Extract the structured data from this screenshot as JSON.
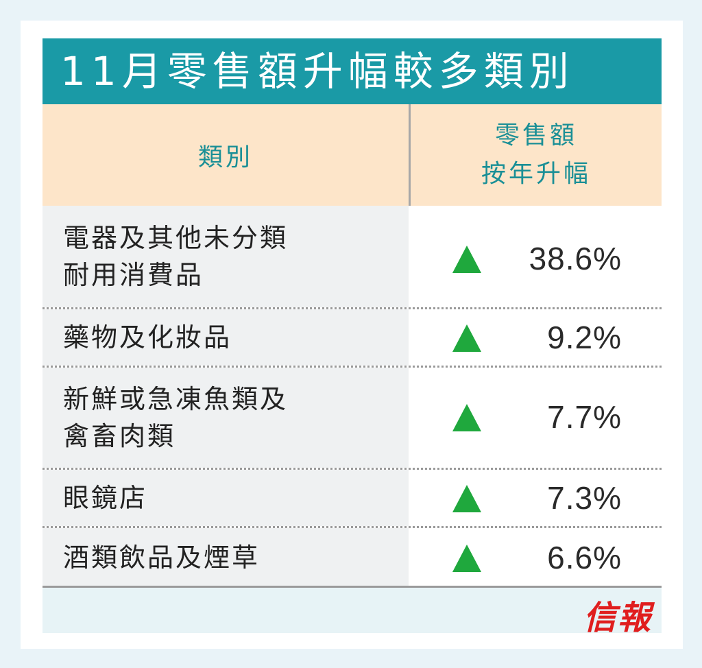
{
  "title": "11月零售額升幅較多類別",
  "table": {
    "headers": {
      "category": "類別",
      "value_line1": "零售額",
      "value_line2": "按年升幅"
    },
    "rows": [
      {
        "category_line1": "電器及其他未分類",
        "category_line2": "耐用消費品",
        "value": "38.6%"
      },
      {
        "category_line1": "藥物及化妝品",
        "category_line2": "",
        "value": "9.2%"
      },
      {
        "category_line1": "新鮮或急凍魚類及",
        "category_line2": "禽畜肉類",
        "value": "7.7%"
      },
      {
        "category_line1": "眼鏡店",
        "category_line2": "",
        "value": "7.3%"
      },
      {
        "category_line1": "酒類飲品及煙草",
        "category_line2": "",
        "value": "6.6%"
      }
    ]
  },
  "chart_data": {
    "type": "table",
    "title": "11月零售額升幅較多類別",
    "columns": [
      "類別",
      "零售額按年升幅"
    ],
    "categories": [
      "電器及其他未分類耐用消費品",
      "藥物及化妝品",
      "新鮮或急凍魚類及禽畜肉類",
      "眼鏡店",
      "酒類飲品及煙草"
    ],
    "values": [
      38.6,
      9.2,
      7.7,
      7.3,
      6.6
    ],
    "unit": "%",
    "direction": [
      "up",
      "up",
      "up",
      "up",
      "up"
    ]
  },
  "icons": {
    "trend": "up-triangle-icon"
  },
  "logo_text": "信報",
  "colors": {
    "title_bg": "#1a9aa6",
    "header_bg": "#fde5c9",
    "header_text": "#1a8f96",
    "up_arrow": "#1fa83d",
    "logo": "#e01e1e"
  }
}
